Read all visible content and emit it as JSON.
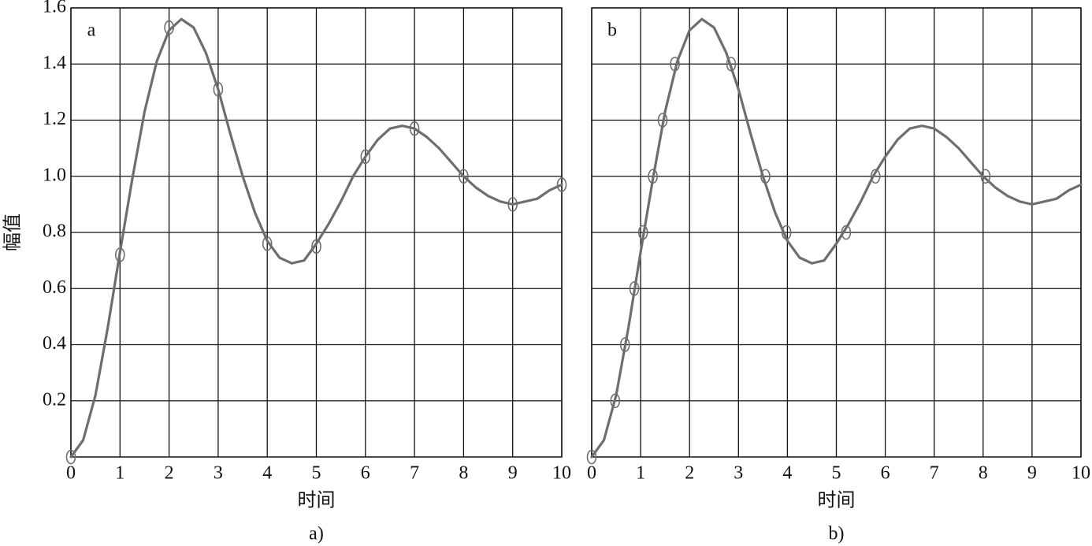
{
  "chart_data": [
    {
      "type": "line",
      "panel_label": "a",
      "caption": "a)",
      "xlabel": "时间",
      "ylabel": "幅值",
      "x": [
        0,
        0.25,
        0.5,
        0.75,
        1,
        1.25,
        1.5,
        1.75,
        2,
        2.25,
        2.5,
        2.75,
        3,
        3.25,
        3.5,
        3.75,
        4,
        4.25,
        4.5,
        4.75,
        5,
        5.25,
        5.5,
        5.75,
        6,
        6.25,
        6.5,
        6.75,
        7,
        7.25,
        7.5,
        7.75,
        8,
        8.25,
        8.5,
        8.75,
        9,
        9.25,
        9.5,
        9.75,
        10
      ],
      "series": [
        {
          "color": "#6e6e6e",
          "values": [
            0,
            0.06,
            0.22,
            0.46,
            0.73,
            0.99,
            1.23,
            1.41,
            1.52,
            1.56,
            1.53,
            1.44,
            1.31,
            1.15,
            1.0,
            0.87,
            0.77,
            0.71,
            0.69,
            0.7,
            0.76,
            0.83,
            0.91,
            1.0,
            1.07,
            1.13,
            1.17,
            1.18,
            1.17,
            1.14,
            1.1,
            1.05,
            1.0,
            0.96,
            0.93,
            0.91,
            0.9,
            0.91,
            0.92,
            0.95,
            0.97
          ]
        }
      ],
      "markers": {
        "color": "#6e6e6e",
        "x": [
          0,
          1,
          2,
          3,
          4,
          5,
          6,
          7,
          8,
          9,
          10
        ],
        "values": [
          0,
          0.72,
          1.53,
          1.31,
          0.76,
          0.75,
          1.07,
          1.17,
          1.0,
          0.9,
          0.97
        ]
      },
      "xlim": [
        0,
        10
      ],
      "ylim": [
        0,
        1.6
      ],
      "xticks": [
        0,
        1,
        2,
        3,
        4,
        5,
        6,
        7,
        8,
        9,
        10
      ],
      "yticks": [
        0.2,
        0.4,
        0.6,
        0.8,
        {
          "value": 1,
          "label": "1.0"
        },
        1.2,
        1.4,
        1.6
      ],
      "show_ytick_labels": true,
      "grid": true
    },
    {
      "type": "line",
      "panel_label": "b",
      "caption": "b)",
      "xlabel": "时间",
      "x": [
        0,
        0.25,
        0.5,
        0.75,
        1,
        1.25,
        1.5,
        1.75,
        2,
        2.25,
        2.5,
        2.75,
        3,
        3.25,
        3.5,
        3.75,
        4,
        4.25,
        4.5,
        4.75,
        5,
        5.25,
        5.5,
        5.75,
        6,
        6.25,
        6.5,
        6.75,
        7,
        7.25,
        7.5,
        7.75,
        8,
        8.25,
        8.5,
        8.75,
        9,
        9.25,
        9.5,
        9.75,
        10
      ],
      "series": [
        {
          "color": "#6e6e6e",
          "values": [
            0,
            0.06,
            0.22,
            0.46,
            0.73,
            0.99,
            1.23,
            1.41,
            1.52,
            1.56,
            1.53,
            1.44,
            1.31,
            1.15,
            1.0,
            0.87,
            0.77,
            0.71,
            0.69,
            0.7,
            0.76,
            0.83,
            0.91,
            1.0,
            1.07,
            1.13,
            1.17,
            1.18,
            1.17,
            1.14,
            1.1,
            1.05,
            1.0,
            0.96,
            0.93,
            0.91,
            0.9,
            0.91,
            0.92,
            0.95,
            0.97
          ]
        }
      ],
      "markers": {
        "color": "#6e6e6e",
        "x": [
          0,
          0.48,
          0.68,
          0.87,
          1.05,
          1.25,
          1.45,
          1.7,
          2.85,
          3.55,
          3.98,
          5.2,
          5.8,
          8.05
        ],
        "values": [
          0,
          0.2,
          0.4,
          0.6,
          0.8,
          1.0,
          1.2,
          1.4,
          1.4,
          1.0,
          0.8,
          0.8,
          1.0,
          1.0
        ]
      },
      "xlim": [
        0,
        10
      ],
      "ylim": [
        0,
        1.6
      ],
      "xticks": [
        0,
        1,
        2,
        3,
        4,
        5,
        6,
        7,
        8,
        9,
        10
      ],
      "yticks": [
        0.2,
        0.4,
        0.6,
        0.8,
        1,
        1.2,
        1.4,
        1.6
      ],
      "show_ytick_labels": false,
      "grid": true
    }
  ]
}
